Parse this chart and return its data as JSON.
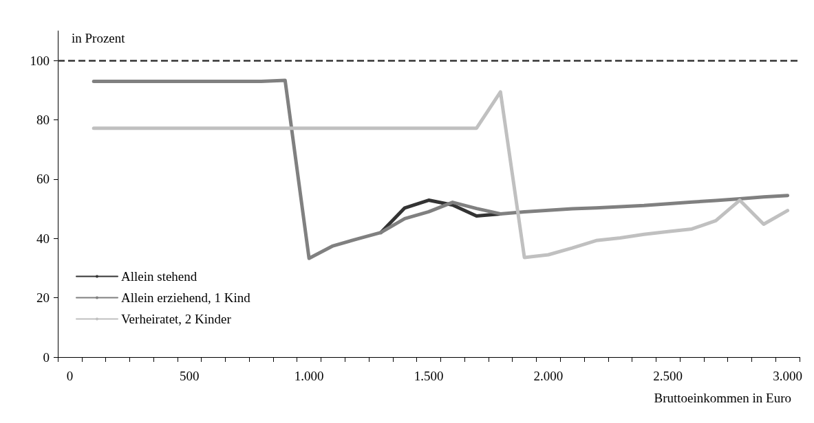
{
  "chart_data": {
    "type": "line",
    "ylabel": "in Prozent",
    "xlabel": "Bruttoeinkommen in Euro",
    "categories": [
      "0",
      null,
      null,
      null,
      null,
      "500",
      null,
      null,
      null,
      null,
      "1.000",
      null,
      null,
      null,
      null,
      "1.500",
      null,
      null,
      null,
      null,
      "2.000",
      null,
      null,
      null,
      null,
      "2.500",
      null,
      null,
      null,
      null,
      "3.000"
    ],
    "series": [
      {
        "name": "Allein stehend",
        "color": "#333333",
        "values": [
          null,
          null,
          null,
          null,
          null,
          null,
          null,
          null,
          null,
          null,
          null,
          null,
          null,
          42,
          50.3,
          52.9,
          51.3,
          47.6,
          48.3,
          null,
          null,
          null,
          null,
          null,
          null,
          null,
          null,
          null,
          null,
          null,
          null
        ]
      },
      {
        "name": "Allein erziehend, 1 Kind",
        "color": "#808080",
        "values": [
          null,
          93,
          93,
          93,
          93,
          93,
          93,
          93,
          93,
          93.3,
          33.3,
          37.5,
          39.8,
          42,
          46.7,
          49,
          52.2,
          50.1,
          48.3,
          49,
          49.5,
          50,
          50.3,
          50.7,
          51.1,
          51.7,
          52.3,
          52.8,
          53.4,
          54,
          54.5
        ]
      },
      {
        "name": "Verheiratet, 2 Kinder",
        "color": "#c0c0c0",
        "values": [
          null,
          77.2,
          77.2,
          77.2,
          77.2,
          77.2,
          77.2,
          77.2,
          77.2,
          77.2,
          77.2,
          77.2,
          77.2,
          77.2,
          77.2,
          77.2,
          77.2,
          77.2,
          89.4,
          33.6,
          34.5,
          36.8,
          39.3,
          40.2,
          41.4,
          42.3,
          43.2,
          46,
          52.9,
          44.8,
          49.4
        ]
      }
    ],
    "ylim": [
      0,
      110
    ],
    "yticks": [
      0,
      20,
      40,
      60,
      80,
      100
    ],
    "ref_lines": [
      {
        "axis": "y",
        "value": 100,
        "color": "#333333",
        "line_style": "dashed"
      }
    ],
    "legend": "bottom left",
    "grid": false,
    "marker": "none",
    "line_style": "solid"
  }
}
